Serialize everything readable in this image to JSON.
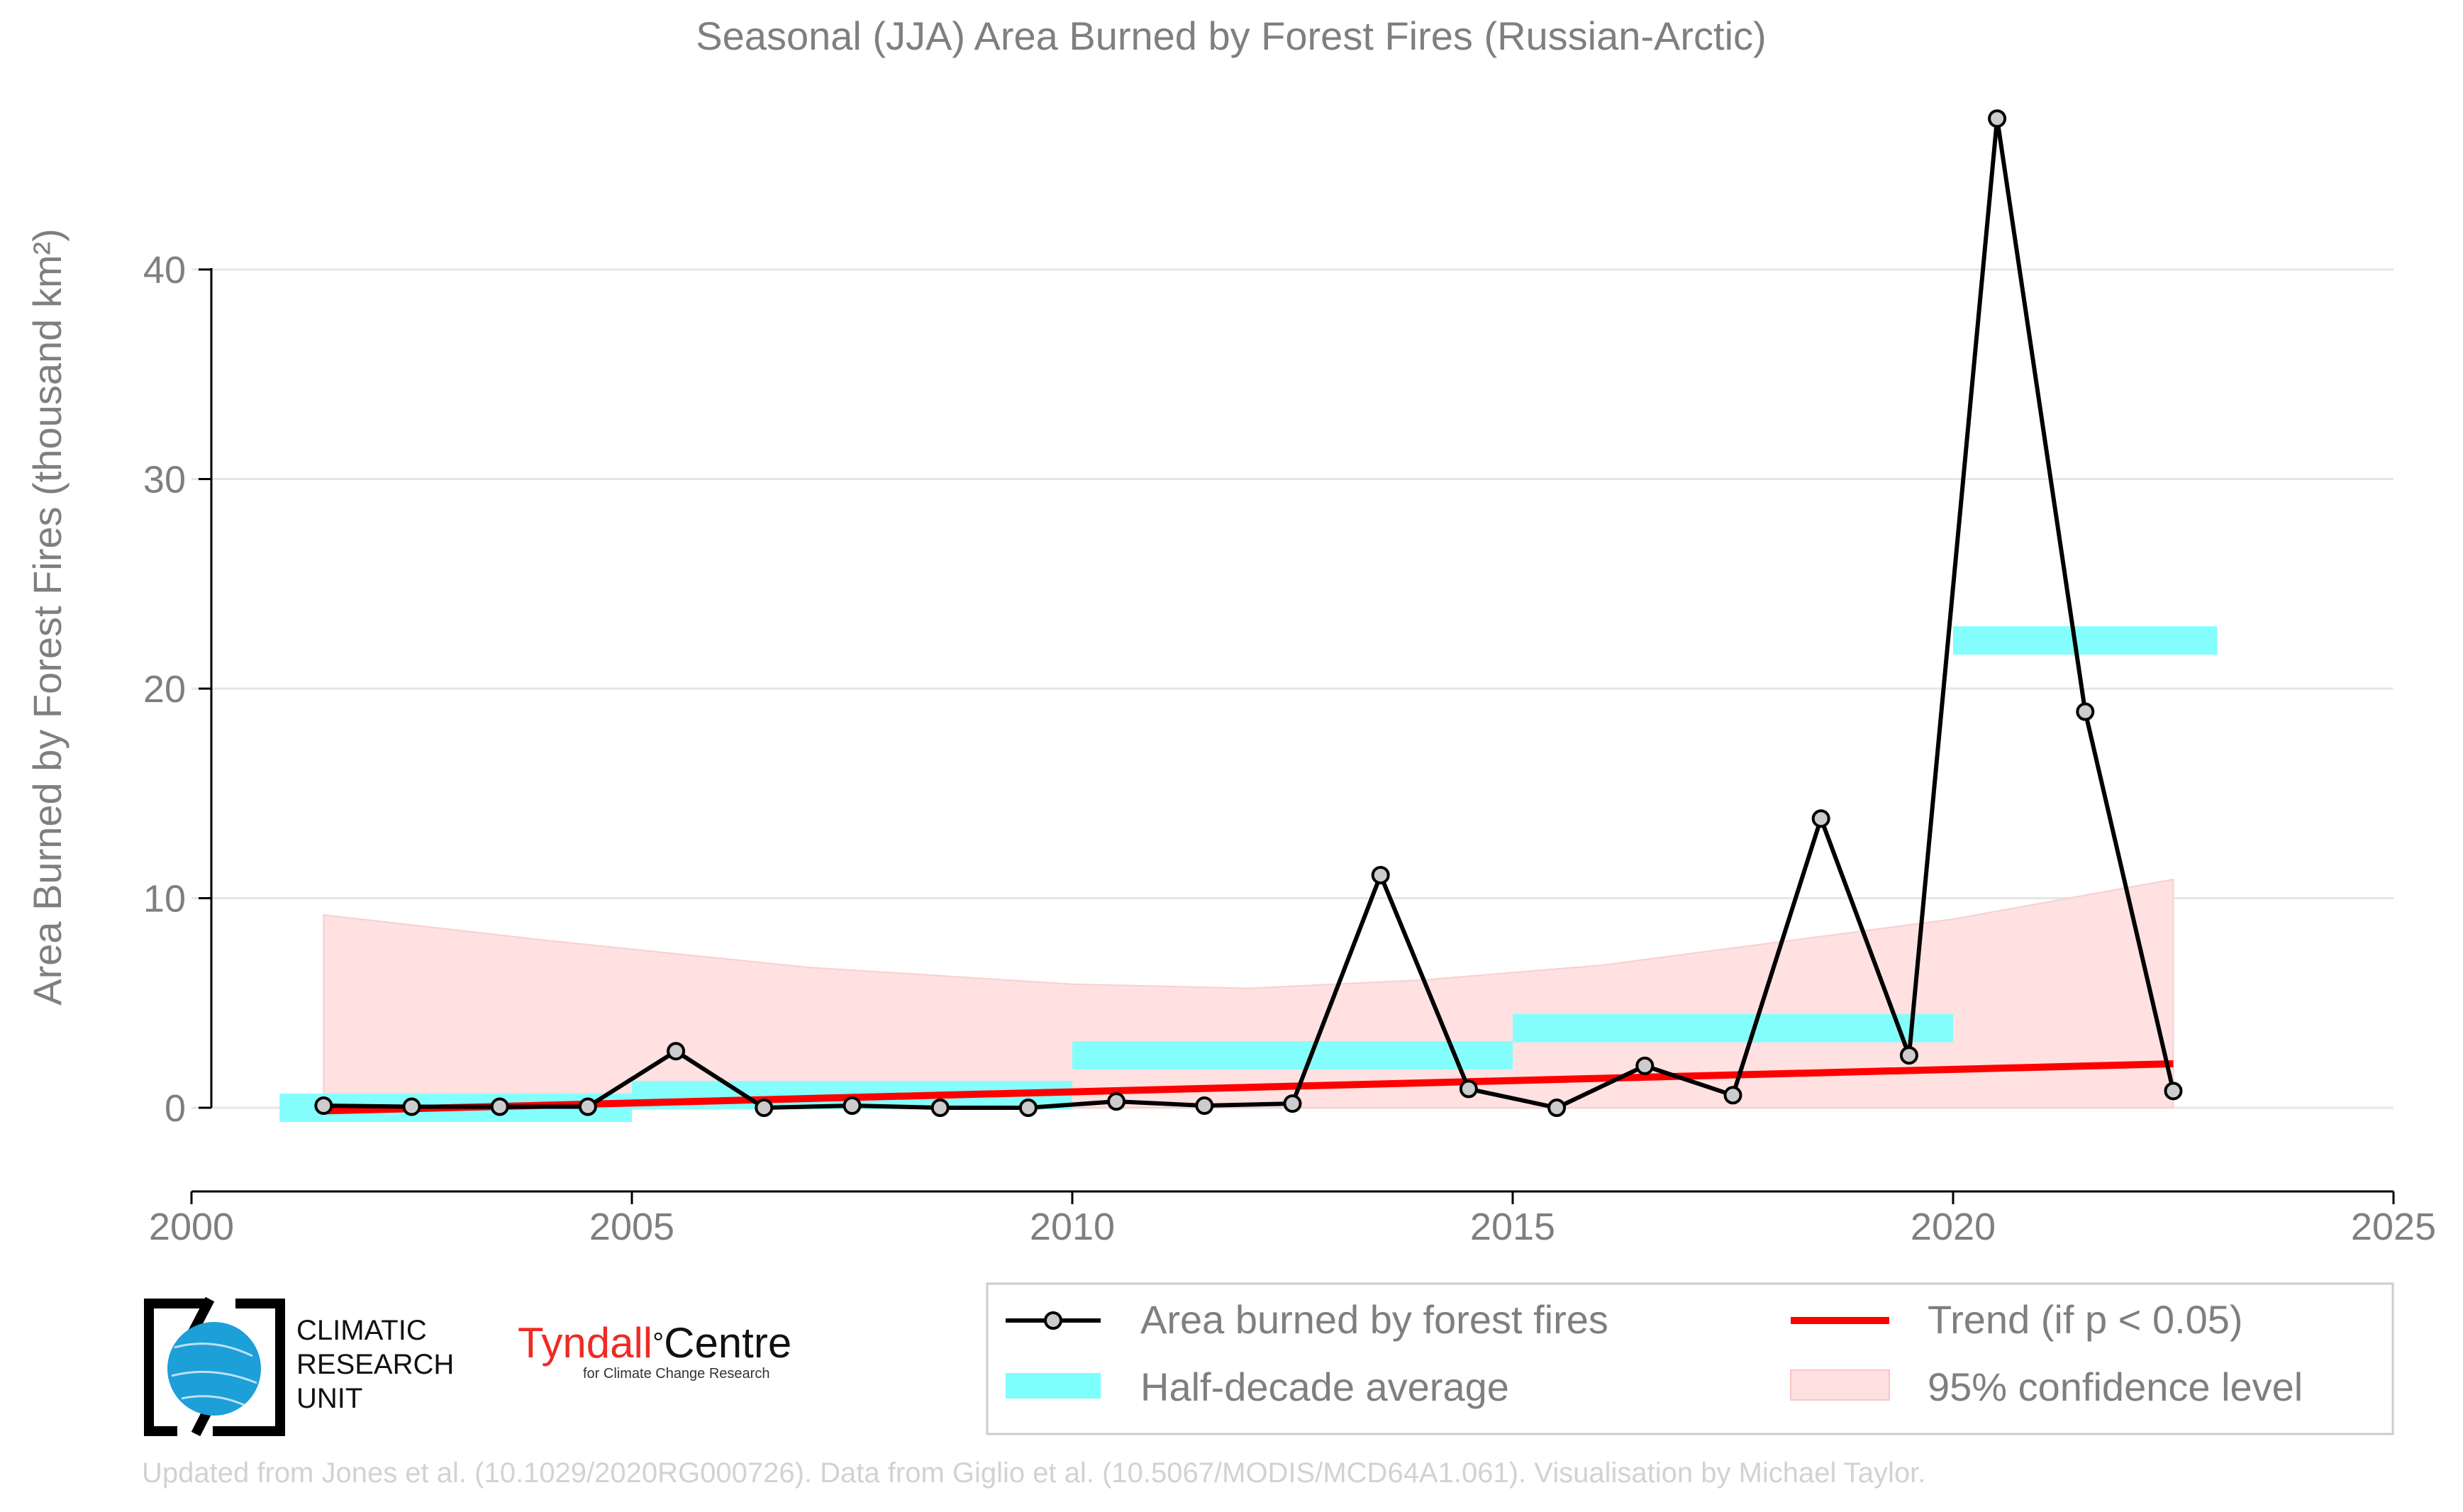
{
  "chart_data": {
    "type": "line",
    "title": "Seasonal (JJA) Area Burned by Forest Fires (Russian-Arctic)",
    "ylabel": "Area Burned by Forest Fires (thousand km²)",
    "xlabel": "",
    "xlim": [
      2000,
      2025
    ],
    "ylim": [
      -4,
      48
    ],
    "xticks": [
      2000,
      2005,
      2010,
      2015,
      2020,
      2025
    ],
    "yticks": [
      0,
      10,
      20,
      30,
      40
    ],
    "grid": "horizontal",
    "legend_position": "bottom-right",
    "series": [
      {
        "name": "Area burned by forest fires",
        "color": "#000000",
        "x": [
          2001.5,
          2002.5,
          2003.5,
          2004.5,
          2005.5,
          2006.5,
          2007.5,
          2008.5,
          2009.5,
          2010.5,
          2011.5,
          2012.5,
          2013.5,
          2014.5,
          2015.5,
          2016.5,
          2017.5,
          2018.5,
          2019.5,
          2020.5,
          2021.5,
          2022.5
        ],
        "values": [
          0.1,
          0.05,
          0.05,
          0.05,
          2.7,
          0.0,
          0.1,
          0.0,
          0.0,
          0.3,
          0.1,
          0.2,
          11.1,
          0.9,
          0.0,
          2.0,
          0.6,
          13.8,
          2.5,
          47.2,
          18.9,
          0.8
        ]
      },
      {
        "name": "Half-decade average",
        "color": "#7dfffd",
        "segments": [
          {
            "x_start": 2001,
            "x_end": 2005,
            "value": 0.0
          },
          {
            "x_start": 2005,
            "x_end": 2010,
            "value": 0.6
          },
          {
            "x_start": 2010,
            "x_end": 2015,
            "value": 2.5
          },
          {
            "x_start": 2015,
            "x_end": 2020,
            "value": 3.8
          },
          {
            "x_start": 2020,
            "x_end": 2023,
            "value": 22.3
          }
        ]
      },
      {
        "name": "Trend (if p < 0.05)",
        "color": "#ff0000",
        "x": [
          2001.5,
          2022.5
        ],
        "values": [
          -0.15,
          2.1
        ]
      },
      {
        "name": "95% confidence level",
        "color": "#ffe0e0",
        "x": [
          2001.5,
          2004,
          2007,
          2010,
          2012,
          2014,
          2016,
          2018,
          2020,
          2022.5
        ],
        "upper": [
          9.2,
          8.0,
          6.7,
          5.9,
          5.7,
          6.1,
          6.8,
          7.9,
          9.0,
          10.9
        ],
        "lower": [
          0,
          0,
          0,
          0,
          0,
          0,
          0,
          0,
          0,
          0
        ]
      }
    ]
  },
  "logos": {
    "cru_text": [
      "CLIMATIC",
      "RESEARCH",
      "UNIT"
    ],
    "tyndall_main": "Tyndall",
    "tyndall_degree": "°",
    "tyndall_centre": "Centre",
    "tyndall_sub": "for Climate Change Research"
  },
  "footer": "Updated from Jones et al. (10.1029/2020RG000726). Data from Giglio et al. (10.5067/MODIS/MCD64A1.061). Visualisation by Michael Taylor."
}
